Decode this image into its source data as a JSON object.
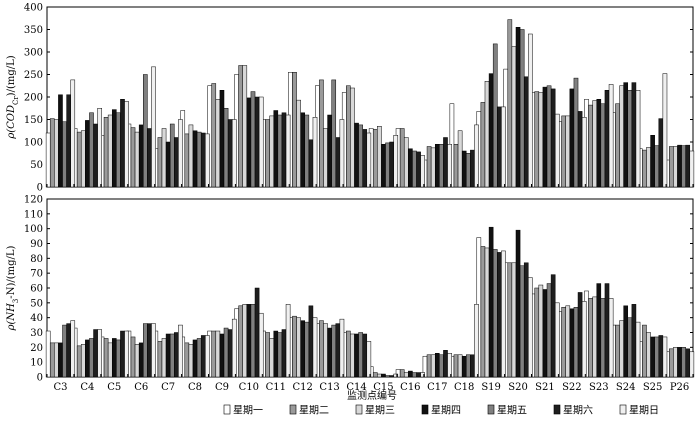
{
  "chart_data": {
    "type": "bar",
    "categories": [
      "C3",
      "C4",
      "C5",
      "C6",
      "C7",
      "C8",
      "C9",
      "C10",
      "C11",
      "C12",
      "C13",
      "C14",
      "C15",
      "C16",
      "C17",
      "C18",
      "S19",
      "S20",
      "S21",
      "S22",
      "S23",
      "S24",
      "S25",
      "P26"
    ],
    "xlabel": "监测点编号",
    "series_names": [
      "星期一",
      "星期二",
      "星期三",
      "星期四",
      "星期五",
      "星期六",
      "星期日"
    ],
    "colors": [
      "#ffffff",
      "#9a9a9a",
      "#d8d8d8",
      "#111111",
      "#808080",
      "#1e1e1e",
      "#f0f0f0"
    ],
    "panels": [
      {
        "ylabel": "ρ(COD_Cr)/(mg/L)",
        "ylabel_main": "ρ(COD",
        "ylabel_sub": "Cr",
        "ylabel_tail": ")/(mg/L)",
        "ylim": [
          0,
          400
        ],
        "yticks": [
          0,
          50,
          100,
          150,
          200,
          250,
          300,
          350,
          400
        ],
        "series": [
          {
            "name": "星期一",
            "values": [
              120,
              130,
              115,
              140,
              85,
              170,
              225,
              250,
              150,
              255,
              225,
              210,
              130,
              130,
              60,
              185,
              168,
              262,
              210,
              145,
              195,
              165,
              85,
              60
            ]
          },
          {
            "name": "星期二",
            "values": [
              152,
              122,
              155,
              132,
              110,
              118,
              230,
              270,
              150,
              255,
              238,
              225,
              128,
              130,
              90,
              95,
              188,
              372,
              212,
              158,
              182,
              185,
              82,
              90
            ]
          },
          {
            "name": "星期三",
            "values": [
              150,
              125,
              160,
              122,
              130,
              138,
              195,
              270,
              158,
              193,
              130,
              220,
              135,
              110,
              87,
              125,
              235,
              312,
              210,
              158,
              192,
              225,
              88,
              90
            ]
          },
          {
            "name": "星期四",
            "values": [
              205,
              148,
              172,
              138,
              100,
              125,
              215,
              198,
              170,
              165,
              160,
              142,
              95,
              85,
              95,
              80,
              252,
              355,
              222,
              218,
              195,
              232,
              115,
              93
            ]
          },
          {
            "name": "星期五",
            "values": [
              145,
              165,
              165,
              250,
              140,
              122,
              175,
              212,
              160,
              160,
              238,
              138,
              98,
              80,
              95,
              75,
              318,
              350,
              225,
              242,
              185,
              215,
              92,
              92
            ]
          },
          {
            "name": "星期六",
            "values": [
              205,
              140,
              195,
              130,
              110,
              120,
              150,
              200,
              165,
              105,
              110,
              128,
              100,
              78,
              110,
              82,
              178,
              245,
              218,
              168,
              215,
              232,
              152,
              93
            ]
          },
          {
            "name": "星期日",
            "values": [
              238,
              175,
              190,
              267,
              150,
              118,
              150,
              200,
              160,
              155,
              150,
              120,
              115,
              70,
              95,
              138,
              178,
              340,
              162,
              155,
              228,
              215,
              252,
              80
            ]
          }
        ]
      },
      {
        "ylabel": "ρ(NH3-N)/(mg/L)",
        "ylabel_main": "ρ(NH",
        "ylabel_sub": "3",
        "ylabel_tail": "-N)/(mg/L)",
        "ylim": [
          0,
          120
        ],
        "yticks": [
          0,
          10,
          20,
          30,
          40,
          50,
          60,
          70,
          80,
          90,
          100,
          110,
          120
        ],
        "series": [
          {
            "name": "星期一",
            "values": [
              31,
              33,
              27,
              31,
              31,
              27,
              31,
              46,
              31,
              40,
              36,
              30,
              7,
              5,
              14,
              14,
              94,
              77,
              56,
              44,
              58,
              35,
              24,
              17
            ]
          },
          {
            "name": "星期二",
            "values": [
              23,
              21,
              26,
              27,
              24,
              23,
              31,
              48,
              30,
              41,
              38,
              31,
              3,
              5,
              15,
              15,
              88,
              77,
              60,
              47,
              53,
              35,
              35,
              19
            ]
          },
          {
            "name": "星期三",
            "values": [
              23,
              22,
              23,
              22,
              26,
              22,
              31,
              49,
              26,
              40,
              36,
              29,
              2,
              3,
              15,
              15,
              87,
              77,
              62,
              48,
              54,
              38,
              30,
              20
            ]
          },
          {
            "name": "星期四",
            "values": [
              23,
              25,
              26,
              23,
              29,
              25,
              29,
              49,
              31,
              38,
              33,
              29,
              2,
              4,
              16,
              14,
              101,
              99,
              59,
              46,
              63,
              48,
              27,
              20
            ]
          },
          {
            "name": "星期五",
            "values": [
              35,
              26,
              25,
              36,
              29,
              26,
              33,
              49,
              30,
              37,
              35,
              30,
              1,
              3,
              15,
              15,
              86,
              75,
              63,
              47,
              53,
              40,
              27,
              20
            ]
          },
          {
            "name": "星期六",
            "values": [
              36,
              32,
              31,
              36,
              30,
              28,
              32,
              60,
              32,
              48,
              36,
              29,
              1,
              3,
              18,
              15,
              84,
              77,
              69,
              57,
              63,
              49,
              28,
              19
            ]
          },
          {
            "name": "星期日",
            "values": [
              38,
              32,
              31,
              36,
              35,
              28,
              39,
              43,
              49,
              40,
              39,
              24,
              2,
              3,
              16,
              49,
              85,
              67,
              50,
              51,
              53,
              37,
              27,
              17
            ]
          }
        ]
      }
    ]
  }
}
